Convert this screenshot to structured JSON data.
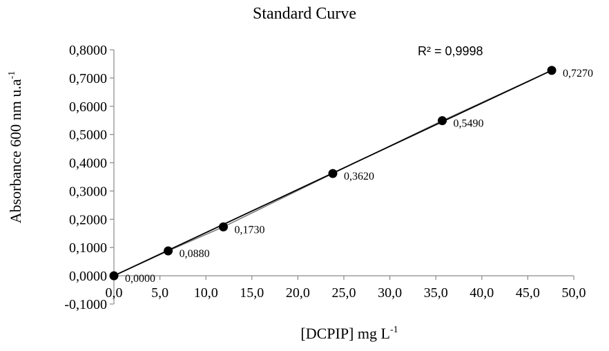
{
  "chart_data": {
    "type": "scatter",
    "title": "Standard Curve",
    "xlabel": "[DCPIP] mg L",
    "xlabel_sup": "-1",
    "ylabel": "Absorbance 600 nm u.a",
    "ylabel_sup": "-1",
    "xlim": [
      0,
      50
    ],
    "ylim": [
      -0.1,
      0.8
    ],
    "x_ticks": [
      "0,0",
      "5,0",
      "10,0",
      "15,0",
      "20,0",
      "25,0",
      "30,0",
      "35,0",
      "40,0",
      "45,0",
      "50,0"
    ],
    "y_ticks": [
      "-0,1000",
      "0,0000",
      "0,1000",
      "0,2000",
      "0,3000",
      "0,4000",
      "0,5000",
      "0,6000",
      "0,7000",
      "0,8000"
    ],
    "grid": false,
    "series": [
      {
        "x": [
          0.0,
          5.9,
          11.9,
          23.8,
          35.7,
          47.6
        ],
        "y": [
          0.0,
          0.088,
          0.173,
          0.362,
          0.549,
          0.727
        ],
        "labels": [
          "0,0000",
          "0,0880",
          "0,1730",
          "0,3620",
          "0,5490",
          "0,7270"
        ]
      }
    ],
    "trendline": {
      "x": [
        0.0,
        47.6
      ],
      "y": [
        0.0,
        0.727
      ]
    },
    "annotation": "R² = 0,9998",
    "colors": {
      "marker": "#000000",
      "line": "#000000",
      "series_line": "#777777"
    }
  }
}
